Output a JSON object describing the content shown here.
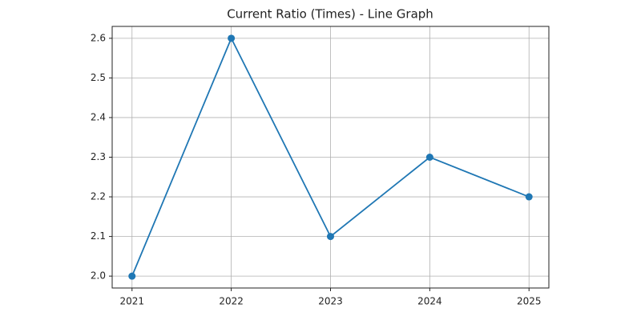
{
  "chart_data": {
    "type": "line",
    "title": "Current Ratio (Times) - Line Graph",
    "x": [
      2021,
      2022,
      2023,
      2024,
      2025
    ],
    "values": [
      2.0,
      2.6,
      2.1,
      2.3,
      2.2
    ],
    "color": "#1f77b4",
    "xlim": [
      2020.8,
      2025.2
    ],
    "xticks": [
      2021,
      2022,
      2023,
      2024,
      2025
    ],
    "ylim": [
      1.97,
      2.63
    ],
    "yticks": [
      {
        "value": 2.0,
        "label": "2.0"
      },
      2.1,
      2.2,
      2.3,
      2.4,
      2.5,
      2.6
    ],
    "grid": true
  }
}
